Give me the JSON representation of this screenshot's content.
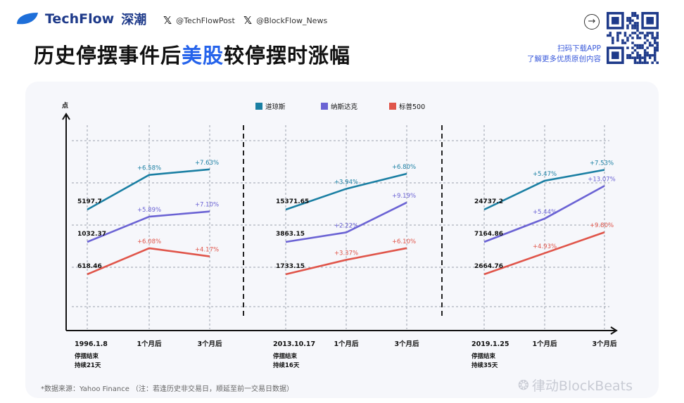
{
  "header": {
    "brand": "TechFlow",
    "brand_cn": "深潮",
    "twitter_1": "@TechFlowPost",
    "twitter_2": "@BlockFlow_News",
    "title_part1": "历史停摆事件后",
    "title_highlight": "美股",
    "title_part2": "较停摆时涨幅",
    "qr_line1": "扫码下载APP",
    "qr_line2": "了解更多优质原创内容",
    "brand_color": "#1e3a8a",
    "highlight_color": "#2563eb"
  },
  "footer": {
    "source": "*数据来源：Yahoo Finance （注：若逢历史非交易日，顺延至前一交易日数据）",
    "watermark": "律动BlockBeats"
  },
  "chart_data": {
    "type": "line",
    "ylabel": "点",
    "legend": [
      {
        "name": "道琼斯",
        "color": "#1a7fa3"
      },
      {
        "name": "纳斯达克",
        "color": "#6b63d4"
      },
      {
        "name": "标普500",
        "color": "#e0554a"
      }
    ],
    "legend_position": "top-center",
    "grid": true,
    "panels": [
      {
        "categories": [
          "1996.1.8",
          "1个月后",
          "3个月后"
        ],
        "note_line1": "停摆结束",
        "note_line2": "持续21天",
        "series": [
          {
            "name": "道琼斯",
            "start_label": "5197.7",
            "pct": [
              0,
              6.58,
              7.63
            ],
            "pct_labels": [
              "",
              "+6.58%",
              "+7.63%"
            ]
          },
          {
            "name": "纳斯达克",
            "start_label": "1032.37",
            "pct": [
              0,
              5.89,
              7.1
            ],
            "pct_labels": [
              "",
              "+5.89%",
              "+7.10%"
            ]
          },
          {
            "name": "标普500",
            "start_label": "618.46",
            "pct": [
              0,
              6.08,
              4.17
            ],
            "pct_labels": [
              "",
              "+6.08%",
              "+4.17%"
            ]
          }
        ]
      },
      {
        "categories": [
          "2013.10.17",
          "1个月后",
          "3个月后"
        ],
        "note_line1": "停摆结束",
        "note_line2": "持续16天",
        "series": [
          {
            "name": "道琼斯",
            "start_label": "15371.65",
            "pct": [
              0,
              3.94,
              6.8
            ],
            "pct_labels": [
              "",
              "+3.94%",
              "+6.80%"
            ]
          },
          {
            "name": "纳斯达克",
            "start_label": "3863.15",
            "pct": [
              0,
              2.22,
              9.19
            ],
            "pct_labels": [
              "",
              "+2.22%",
              "+9.19%"
            ]
          },
          {
            "name": "标普500",
            "start_label": "1733.15",
            "pct": [
              0,
              3.37,
              6.1
            ],
            "pct_labels": [
              "",
              "+3.37%",
              "+6.10%"
            ]
          }
        ]
      },
      {
        "categories": [
          "2019.1.25",
          "1个月后",
          "3个月后"
        ],
        "note_line1": "停摆结束",
        "note_line2": "持续35天",
        "series": [
          {
            "name": "道琼斯",
            "start_label": "24737.2",
            "pct": [
              0,
              5.47,
              7.53
            ],
            "pct_labels": [
              "",
              "+5.47%",
              "+7.53%"
            ]
          },
          {
            "name": "纳斯达克",
            "start_label": "7164.86",
            "pct": [
              0,
              5.44,
              13.07
            ],
            "pct_labels": [
              "",
              "+5.44%",
              "+13.07%"
            ]
          },
          {
            "name": "标普500",
            "start_label": "2664.76",
            "pct": [
              0,
              4.93,
              9.8
            ],
            "pct_labels": [
              "",
              "+4.93%",
              "+9.80%"
            ]
          }
        ]
      }
    ]
  }
}
